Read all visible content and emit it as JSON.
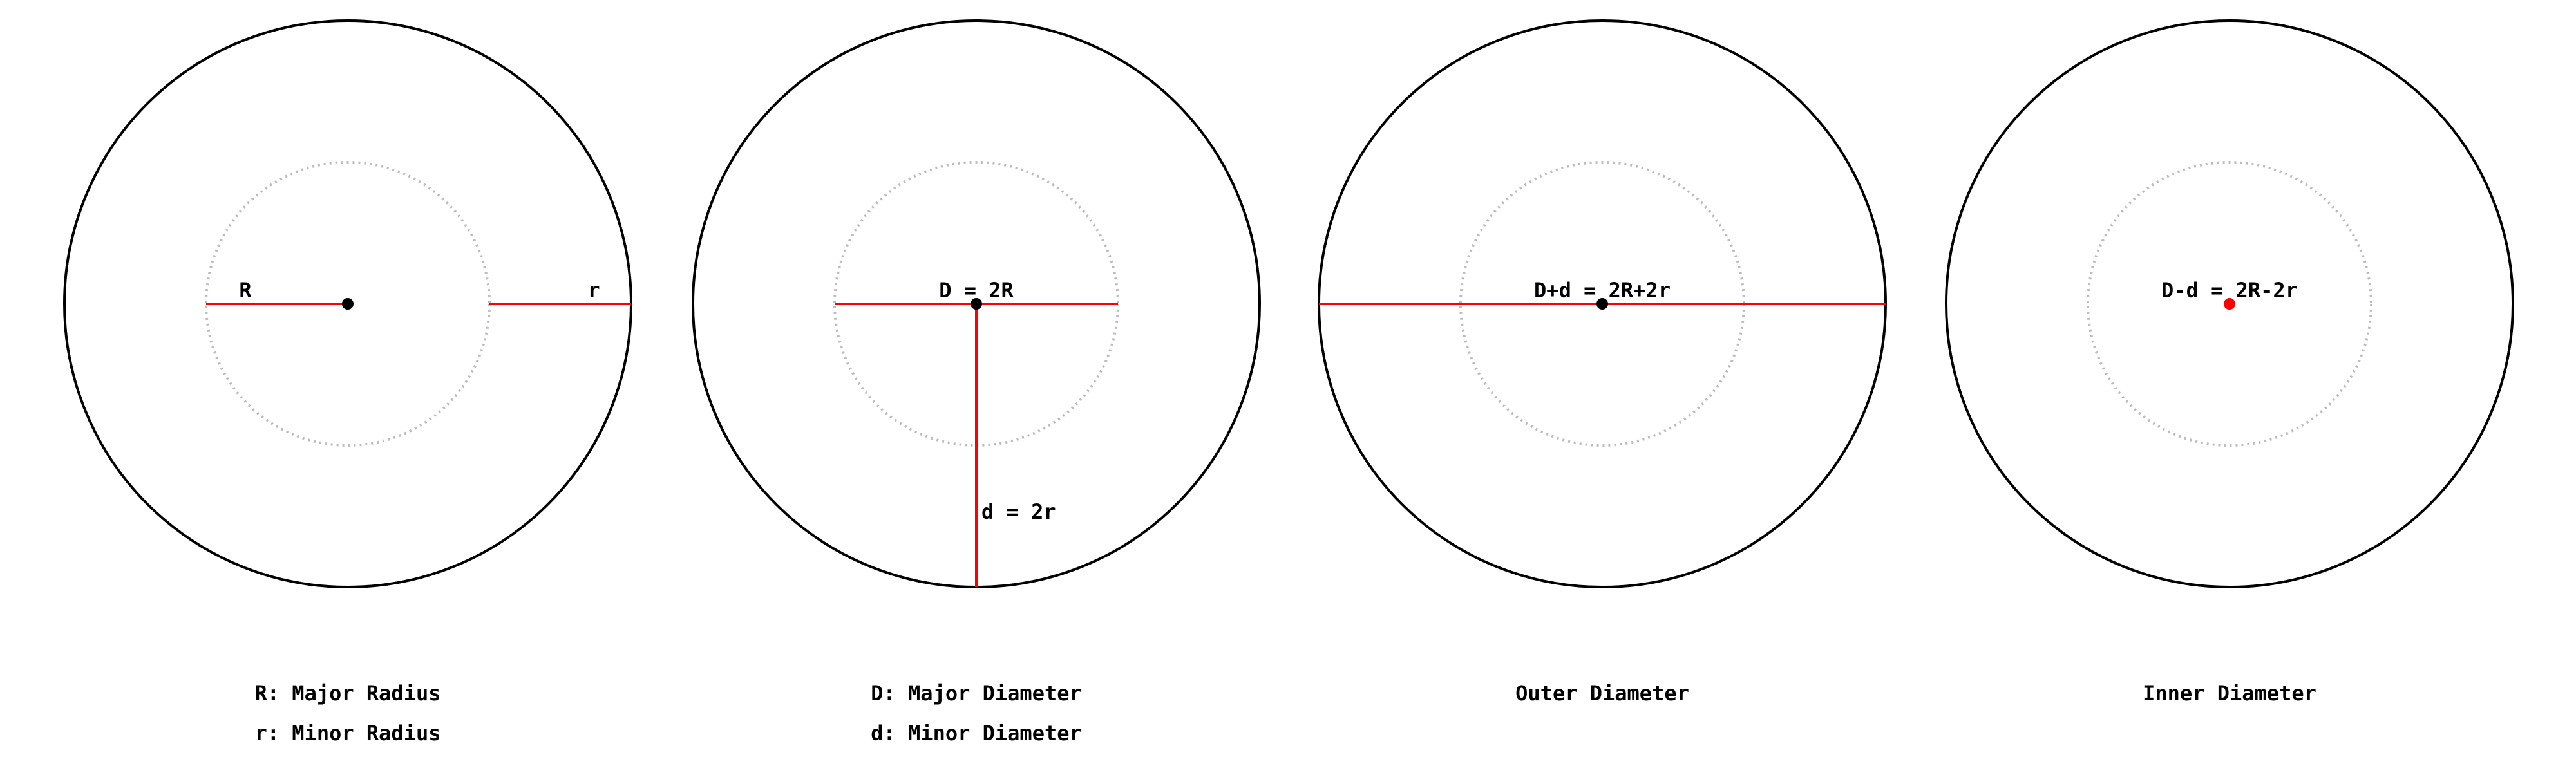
{
  "panels": [
    {
      "id": "radius",
      "labels": {
        "major": "R",
        "minor": "r"
      },
      "captions": [
        "R: Major Radius",
        "r: Minor Radius"
      ]
    },
    {
      "id": "diameter",
      "labels": {
        "major": "D = 2R",
        "minor": "d = 2r"
      },
      "captions": [
        "D: Major Diameter",
        "d: Minor Diameter"
      ]
    },
    {
      "id": "outer",
      "labels": {
        "main": "D+d = 2R+2r"
      },
      "captions": [
        "Outer Diameter"
      ]
    },
    {
      "id": "inner",
      "labels": {
        "main": "D-d = 2R-2r"
      },
      "captions": [
        "Inner Diameter"
      ]
    }
  ],
  "colors": {
    "outline": "#000000",
    "guide": "#bdbdbd",
    "measure": "#ff0000"
  }
}
